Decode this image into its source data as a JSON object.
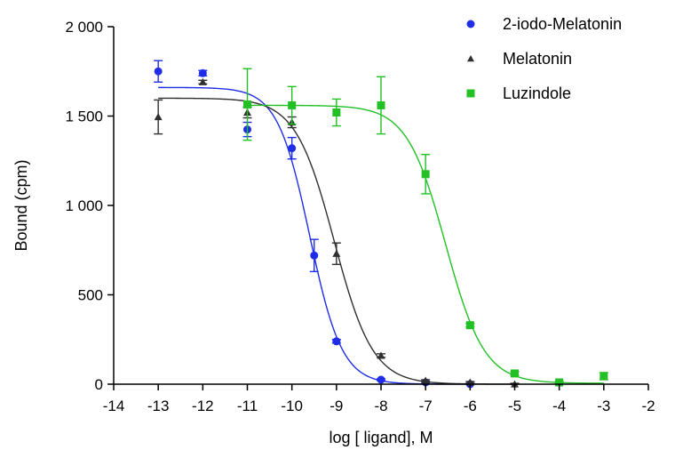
{
  "chart_data": {
    "type": "scatter",
    "xlabel": "log [ ligand], M",
    "ylabel": "Bound (cpm)",
    "xlim": [
      -14,
      -2
    ],
    "ylim": [
      0,
      2000
    ],
    "x_ticks": [
      -14,
      -13,
      -12,
      -11,
      -10,
      -9,
      -8,
      -7,
      -6,
      -5,
      -4,
      -3,
      -2
    ],
    "x_tick_labels": [
      "-14",
      "-13",
      "-12",
      "-11",
      "-10",
      "-9",
      "-8",
      "-7",
      "-6",
      "-5",
      "-4",
      "-3",
      "-2"
    ],
    "y_ticks": [
      0,
      500,
      1000,
      1500,
      2000
    ],
    "y_tick_labels": [
      "0",
      "500",
      "1 000",
      "1 500",
      "2 000"
    ],
    "grid": false,
    "legend_position": "top-right",
    "series": [
      {
        "name": "2-iodo-Melatonin",
        "color": "#1f2ee6",
        "marker": "circle",
        "points": [
          {
            "x": -13,
            "y": 1750,
            "err": 60
          },
          {
            "x": -12,
            "y": 1740,
            "err": 15
          },
          {
            "x": -11,
            "y": 1425,
            "err": 40
          },
          {
            "x": -10,
            "y": 1320,
            "err": 60
          },
          {
            "x": -9.5,
            "y": 720,
            "err": 90
          },
          {
            "x": -9,
            "y": 240,
            "err": 10
          },
          {
            "x": -8,
            "y": 25,
            "err": 5
          },
          {
            "x": -7,
            "y": 10,
            "err": 5
          },
          {
            "x": -6,
            "y": 0,
            "err": 5
          }
        ],
        "fit": {
          "top": 1660,
          "bottom": 0,
          "logEC50": -9.6,
          "hill": 1.2
        }
      },
      {
        "name": "Melatonin",
        "color": "#303030",
        "marker": "triangle",
        "points": [
          {
            "x": -13,
            "y": 1495,
            "err": 95
          },
          {
            "x": -12,
            "y": 1690,
            "err": 10
          },
          {
            "x": -11,
            "y": 1520,
            "err": 30
          },
          {
            "x": -10,
            "y": 1465,
            "err": 30
          },
          {
            "x": -9,
            "y": 730,
            "err": 60
          },
          {
            "x": -8,
            "y": 160,
            "err": 10
          },
          {
            "x": -7,
            "y": 20,
            "err": 5
          },
          {
            "x": -6,
            "y": 10,
            "err": 5
          },
          {
            "x": -5,
            "y": 0,
            "err": 5
          }
        ],
        "fit": {
          "top": 1600,
          "bottom": 0,
          "logEC50": -9.05,
          "hill": 1.0
        }
      },
      {
        "name": "Luzindole",
        "color": "#22c025",
        "marker": "square",
        "points": [
          {
            "x": -11,
            "y": 1565,
            "err": 200
          },
          {
            "x": -10,
            "y": 1560,
            "err": 105
          },
          {
            "x": -9,
            "y": 1520,
            "err": 75
          },
          {
            "x": -8,
            "y": 1560,
            "err": 160
          },
          {
            "x": -7,
            "y": 1175,
            "err": 110
          },
          {
            "x": -6,
            "y": 330,
            "err": 10
          },
          {
            "x": -5,
            "y": 60,
            "err": 10
          },
          {
            "x": -4,
            "y": 10,
            "err": 5
          },
          {
            "x": -3,
            "y": 45,
            "err": 20
          }
        ],
        "fit": {
          "top": 1560,
          "bottom": 5,
          "logEC50": -6.55,
          "hill": 1.0
        }
      }
    ]
  }
}
